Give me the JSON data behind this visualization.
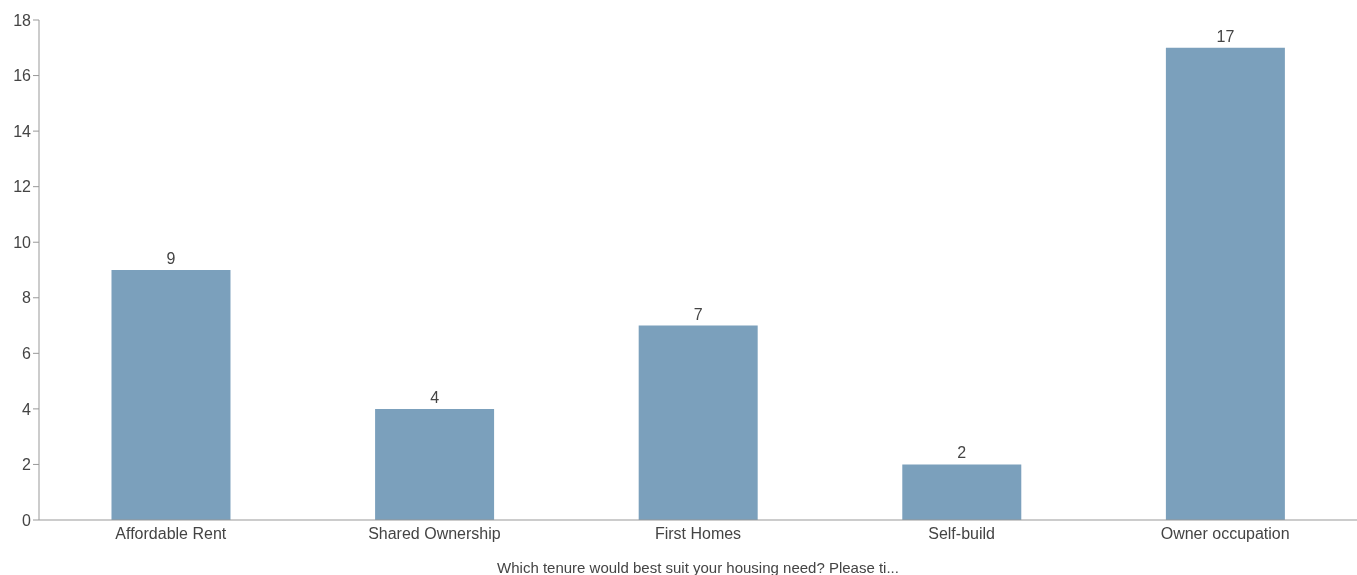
{
  "chart_data": {
    "type": "bar",
    "xlabel": "Which tenure would best suit your housing need? Please ti...",
    "categories": [
      "Affordable Rent",
      "Shared Ownership",
      "First Homes",
      "Self-build",
      "Owner occupation"
    ],
    "values": [
      9,
      4,
      7,
      2,
      17
    ],
    "color": "#7ba0bc",
    "ylim": [
      0,
      18
    ],
    "yticks": [
      0,
      2,
      4,
      6,
      8,
      10,
      12,
      14,
      16,
      18
    ],
    "data_labels": true
  }
}
